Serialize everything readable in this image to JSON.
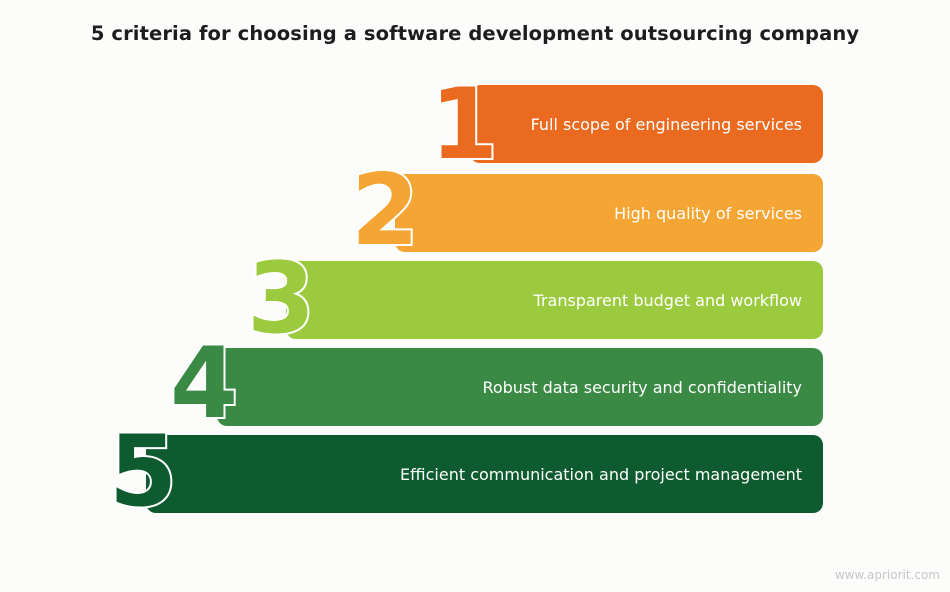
{
  "title": "5 criteria for choosing a software development outsourcing company",
  "steps": [
    {
      "number": "1",
      "label": "Full scope of engineering services",
      "color": "#ea6a1f"
    },
    {
      "number": "2",
      "label": "High quality of services",
      "color": "#f4a533"
    },
    {
      "number": "3",
      "label": "Transparent budget and workflow",
      "color": "#9bca3e"
    },
    {
      "number": "4",
      "label": "Robust data security and confidentiality",
      "color": "#3a8a45"
    },
    {
      "number": "5",
      "label": "Efficient communication and project management",
      "color": "#0d5b2e"
    }
  ],
  "watermark": "www.apriorit.com"
}
